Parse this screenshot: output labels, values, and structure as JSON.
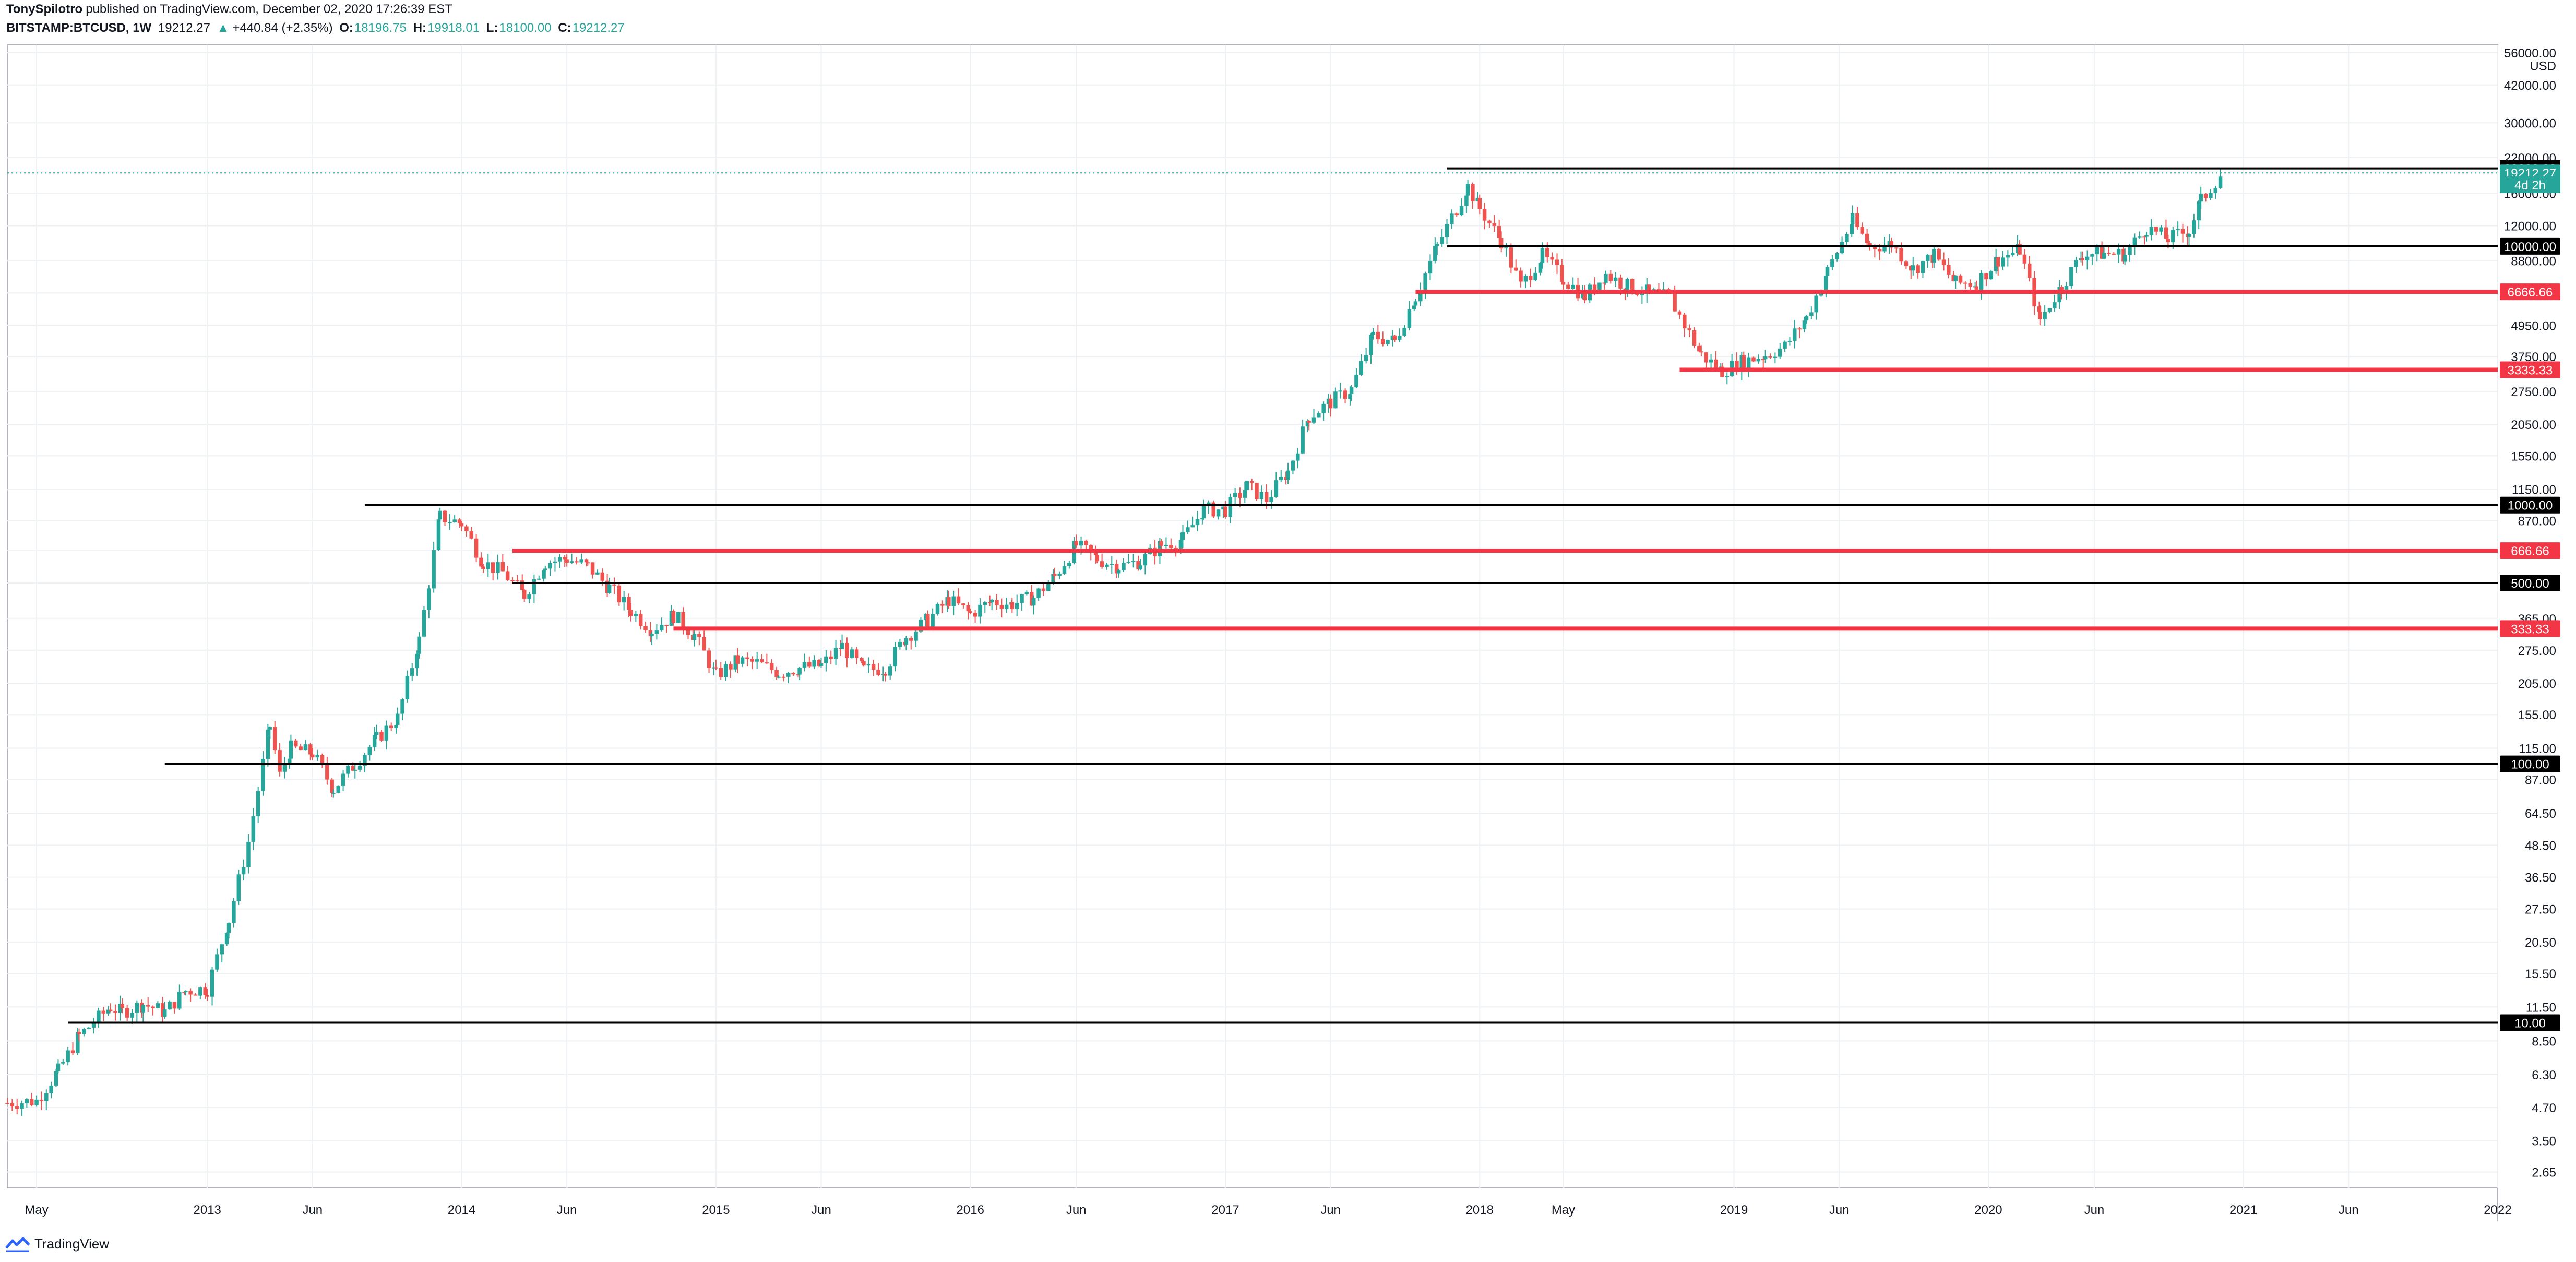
{
  "header": {
    "author": "TonySpilotro",
    "published_text": "published on TradingView.com, December 02, 2020 17:26:39 EST",
    "symbol": "BITSTAMP:BTCUSD, 1W",
    "last": "19212.27",
    "change_arrow": "▲",
    "change": "+440.84 (+2.35%)",
    "o_label": "O:",
    "o": "18196.75",
    "h_label": "H:",
    "h": "19918.01",
    "l_label": "L:",
    "l": "18100.00",
    "c_label": "C:",
    "c": "19212.27"
  },
  "footer": {
    "brand": "TradingView",
    "logo_icon": "tradingview-logo-icon"
  },
  "colors": {
    "up": "#26a69a",
    "down": "#ef5350",
    "red_line": "#f23645",
    "black_line": "#000000",
    "grid": "#eef1f4"
  },
  "chart_data": {
    "type": "candlestick",
    "currency": "USD",
    "y_scale": "log",
    "ylim": [
      2.3,
      60000
    ],
    "xlim": [
      "2012-03-20",
      "2022-01-01"
    ],
    "y_ticks": [
      "2.65",
      "3.50",
      "4.70",
      "6.30",
      "8.50",
      "11.50",
      "15.50",
      "20.50",
      "27.50",
      "36.50",
      "48.50",
      "64.50",
      "87.00",
      "115.00",
      "155.00",
      "205.00",
      "275.00",
      "365.00",
      "500.00",
      "666.66",
      "870.00",
      "1150.00",
      "1550.00",
      "2050.00",
      "2750.00",
      "3750.00",
      "4950.00",
      "6600.00",
      "8800.00",
      "12000.00",
      "16000.00",
      "22000.00",
      "30000.00",
      "42000.00",
      "56000.00"
    ],
    "x_ticks": [
      {
        "label": "May",
        "date": "2012-05-01"
      },
      {
        "label": "2013",
        "date": "2013-01-01"
      },
      {
        "label": "Jun",
        "date": "2013-06-01"
      },
      {
        "label": "2014",
        "date": "2014-01-01"
      },
      {
        "label": "Jun",
        "date": "2014-06-01"
      },
      {
        "label": "2015",
        "date": "2015-01-01"
      },
      {
        "label": "Jun",
        "date": "2015-06-01"
      },
      {
        "label": "2016",
        "date": "2016-01-01"
      },
      {
        "label": "Jun",
        "date": "2016-06-01"
      },
      {
        "label": "2017",
        "date": "2017-01-01"
      },
      {
        "label": "Jun",
        "date": "2017-06-01"
      },
      {
        "label": "2018",
        "date": "2018-01-01"
      },
      {
        "label": "May",
        "date": "2018-05-01"
      },
      {
        "label": "2019",
        "date": "2019-01-01"
      },
      {
        "label": "Jun",
        "date": "2019-06-01"
      },
      {
        "label": "2020",
        "date": "2020-01-01"
      },
      {
        "label": "Jun",
        "date": "2020-06-01"
      },
      {
        "label": "2021",
        "date": "2021-01-01"
      },
      {
        "label": "Jun",
        "date": "2021-06-01"
      },
      {
        "label": "2022",
        "date": "2022-01-01"
      }
    ],
    "price_tags": [
      {
        "text": "USD",
        "value": 50000,
        "style": "plain"
      },
      {
        "text": "20000.00",
        "value": 20000,
        "style": "black"
      },
      {
        "text": "19212.27",
        "value": 19212.27,
        "style": "green"
      },
      {
        "text": "4d 2h",
        "value": 17300,
        "style": "green"
      },
      {
        "text": "10000.00",
        "value": 10000,
        "style": "black"
      },
      {
        "text": "6666.66",
        "value": 6666.66,
        "style": "red"
      },
      {
        "text": "3333.33",
        "value": 3333.33,
        "style": "red"
      },
      {
        "text": "1000.00",
        "value": 1000,
        "style": "black"
      },
      {
        "text": "666.66",
        "value": 666.66,
        "style": "red"
      },
      {
        "text": "500.00",
        "value": 500,
        "style": "black"
      },
      {
        "text": "333.33",
        "value": 333.33,
        "style": "red"
      },
      {
        "text": "100.00",
        "value": 100,
        "style": "black"
      },
      {
        "text": "10.00",
        "value": 10,
        "style": "black"
      }
    ],
    "levels": [
      {
        "value": 20000,
        "color": "black",
        "from": "2017-11-15"
      },
      {
        "value": 10000,
        "color": "black",
        "from": "2017-11-15"
      },
      {
        "value": 6666.66,
        "color": "red",
        "from": "2017-10-01"
      },
      {
        "value": 3333.33,
        "color": "red",
        "from": "2018-10-15"
      },
      {
        "value": 1000,
        "color": "black",
        "from": "2013-08-15"
      },
      {
        "value": 666.66,
        "color": "red",
        "from": "2014-03-15"
      },
      {
        "value": 500,
        "color": "black",
        "from": "2014-03-15"
      },
      {
        "value": 333.33,
        "color": "red",
        "from": "2014-11-01"
      },
      {
        "value": 100,
        "color": "black",
        "from": "2012-11-01"
      },
      {
        "value": 10,
        "color": "black",
        "from": "2012-06-15"
      }
    ],
    "last_price": 19212.27,
    "series": [
      {
        "date": "2012-03-20",
        "close": 4.9
      },
      {
        "date": "2012-05-01",
        "close": 5.0
      },
      {
        "date": "2012-06-01",
        "close": 6.5
      },
      {
        "date": "2012-07-01",
        "close": 8.9
      },
      {
        "date": "2012-08-15",
        "close": 11.5
      },
      {
        "date": "2012-09-01",
        "close": 11.0
      },
      {
        "date": "2012-10-01",
        "close": 11.8
      },
      {
        "date": "2012-11-01",
        "close": 11.0
      },
      {
        "date": "2012-12-01",
        "close": 13.3
      },
      {
        "date": "2013-01-01",
        "close": 13.5
      },
      {
        "date": "2013-02-01",
        "close": 25.0
      },
      {
        "date": "2013-03-01",
        "close": 50.0
      },
      {
        "date": "2013-04-01",
        "close": 140.0
      },
      {
        "date": "2013-04-15",
        "close": 90.0
      },
      {
        "date": "2013-05-01",
        "close": 115.0
      },
      {
        "date": "2013-06-01",
        "close": 110.0
      },
      {
        "date": "2013-07-01",
        "close": 80.0
      },
      {
        "date": "2013-08-01",
        "close": 100.0
      },
      {
        "date": "2013-09-01",
        "close": 125.0
      },
      {
        "date": "2013-10-01",
        "close": 150.0
      },
      {
        "date": "2013-11-01",
        "close": 300.0
      },
      {
        "date": "2013-12-01",
        "close": 900.0
      },
      {
        "date": "2014-01-01",
        "close": 850.0
      },
      {
        "date": "2014-02-01",
        "close": 600.0
      },
      {
        "date": "2014-03-01",
        "close": 550.0
      },
      {
        "date": "2014-04-01",
        "close": 450.0
      },
      {
        "date": "2014-05-01",
        "close": 600.0
      },
      {
        "date": "2014-06-01",
        "close": 620.0
      },
      {
        "date": "2014-07-01",
        "close": 580.0
      },
      {
        "date": "2014-08-01",
        "close": 480.0
      },
      {
        "date": "2014-09-01",
        "close": 390.0
      },
      {
        "date": "2014-10-01",
        "close": 330.0
      },
      {
        "date": "2014-11-01",
        "close": 375.0
      },
      {
        "date": "2014-12-01",
        "close": 315.0
      },
      {
        "date": "2015-01-01",
        "close": 220.0
      },
      {
        "date": "2015-02-01",
        "close": 250.0
      },
      {
        "date": "2015-03-01",
        "close": 245.0
      },
      {
        "date": "2015-04-01",
        "close": 225.0
      },
      {
        "date": "2015-05-01",
        "close": 235.0
      },
      {
        "date": "2015-06-01",
        "close": 240.0
      },
      {
        "date": "2015-07-01",
        "close": 285.0
      },
      {
        "date": "2015-08-01",
        "close": 230.0
      },
      {
        "date": "2015-09-01",
        "close": 235.0
      },
      {
        "date": "2015-10-01",
        "close": 310.0
      },
      {
        "date": "2015-11-01",
        "close": 360.0
      },
      {
        "date": "2015-12-01",
        "close": 430.0
      },
      {
        "date": "2016-01-01",
        "close": 380.0
      },
      {
        "date": "2016-02-01",
        "close": 425.0
      },
      {
        "date": "2016-03-01",
        "close": 415.0
      },
      {
        "date": "2016-04-01",
        "close": 440.0
      },
      {
        "date": "2016-05-01",
        "close": 530.0
      },
      {
        "date": "2016-06-01",
        "close": 700.0
      },
      {
        "date": "2016-07-01",
        "close": 620.0
      },
      {
        "date": "2016-08-01",
        "close": 580.0
      },
      {
        "date": "2016-09-01",
        "close": 605.0
      },
      {
        "date": "2016-10-01",
        "close": 700.0
      },
      {
        "date": "2016-11-01",
        "close": 740.0
      },
      {
        "date": "2016-12-01",
        "close": 960.0
      },
      {
        "date": "2017-01-01",
        "close": 960.0
      },
      {
        "date": "2017-02-01",
        "close": 1180.0
      },
      {
        "date": "2017-03-01",
        "close": 1050.0
      },
      {
        "date": "2017-04-01",
        "close": 1350.0
      },
      {
        "date": "2017-05-01",
        "close": 2200.0
      },
      {
        "date": "2017-06-01",
        "close": 2500.0
      },
      {
        "date": "2017-07-01",
        "close": 2800.0
      },
      {
        "date": "2017-08-01",
        "close": 4500.0
      },
      {
        "date": "2017-09-01",
        "close": 4300.0
      },
      {
        "date": "2017-10-01",
        "close": 6400.0
      },
      {
        "date": "2017-11-01",
        "close": 10000.0
      },
      {
        "date": "2017-12-15",
        "close": 17000.0
      },
      {
        "date": "2018-01-01",
        "close": 14000.0
      },
      {
        "date": "2018-02-01",
        "close": 10500.0
      },
      {
        "date": "2018-03-01",
        "close": 7000.0
      },
      {
        "date": "2018-04-01",
        "close": 9200.0
      },
      {
        "date": "2018-05-01",
        "close": 7500.0
      },
      {
        "date": "2018-06-01",
        "close": 6400.0
      },
      {
        "date": "2018-07-01",
        "close": 7800.0
      },
      {
        "date": "2018-08-01",
        "close": 7000.0
      },
      {
        "date": "2018-09-01",
        "close": 6600.0
      },
      {
        "date": "2018-10-01",
        "close": 6300.0
      },
      {
        "date": "2018-11-15",
        "close": 3800.0
      },
      {
        "date": "2018-12-15",
        "close": 3300.0
      },
      {
        "date": "2019-01-15",
        "close": 3600.0
      },
      {
        "date": "2019-02-15",
        "close": 3800.0
      },
      {
        "date": "2019-03-15",
        "close": 4100.0
      },
      {
        "date": "2019-04-15",
        "close": 5300.0
      },
      {
        "date": "2019-05-15",
        "close": 8000.0
      },
      {
        "date": "2019-06-20",
        "close": 12500.0
      },
      {
        "date": "2019-07-15",
        "close": 10000.0
      },
      {
        "date": "2019-08-15",
        "close": 10200.0
      },
      {
        "date": "2019-09-15",
        "close": 8200.0
      },
      {
        "date": "2019-10-15",
        "close": 9200.0
      },
      {
        "date": "2019-11-15",
        "close": 7200.0
      },
      {
        "date": "2019-12-15",
        "close": 7200.0
      },
      {
        "date": "2020-01-15",
        "close": 8900.0
      },
      {
        "date": "2020-02-15",
        "close": 9700.0
      },
      {
        "date": "2020-03-15",
        "close": 5200.0
      },
      {
        "date": "2020-04-15",
        "close": 7000.0
      },
      {
        "date": "2020-05-15",
        "close": 9300.0
      },
      {
        "date": "2020-06-15",
        "close": 9400.0
      },
      {
        "date": "2020-07-15",
        "close": 9300.0
      },
      {
        "date": "2020-08-15",
        "close": 11800.0
      },
      {
        "date": "2020-09-15",
        "close": 10700.0
      },
      {
        "date": "2020-10-15",
        "close": 11500.0
      },
      {
        "date": "2020-11-01",
        "close": 15000.0
      },
      {
        "date": "2020-12-01",
        "close": 19212.27
      }
    ]
  }
}
